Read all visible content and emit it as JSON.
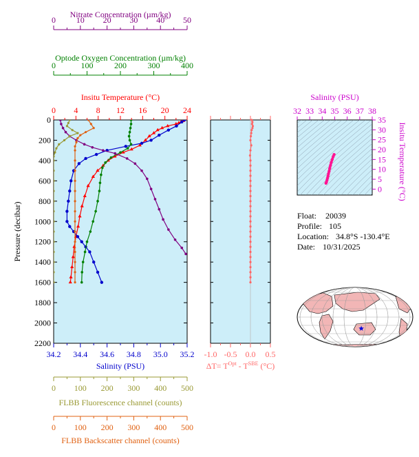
{
  "colors": {
    "nitrate": "#800080",
    "oxygen": "#008000",
    "temperature": "#ff0000",
    "salinity": "#0000cc",
    "fluorescence": "#999933",
    "backscatter": "#e06010",
    "delta_t": "#ff6666",
    "ts_curve": "#ff1493",
    "ts_axis": "#cc00cc",
    "panel_bg": "#cdeef9"
  },
  "info": {
    "float_label": "Float:",
    "float_value": "20039",
    "profile_label": "Profile:",
    "profile_value": "105",
    "location_label": "Location:",
    "location_value": "34.8°S  -130.4°E",
    "date_label": "Date:",
    "date_value": "10/31/2025"
  },
  "chart_data": [
    {
      "type": "line",
      "name": "profile",
      "ylabel": "Pressure (decibar)",
      "ylim": [
        2200,
        0
      ],
      "yticks": [
        "0",
        "200",
        "400",
        "600",
        "800",
        "1000",
        "1200",
        "1400",
        "1600",
        "1800",
        "2000",
        "2200"
      ],
      "axes": {
        "nitrate": {
          "label": "Nitrate Concentration (µm/kg)",
          "range": [
            0,
            50
          ],
          "ticks": [
            "0",
            "10",
            "20",
            "30",
            "40",
            "50"
          ],
          "position": "top"
        },
        "oxygen": {
          "label": "Optode Oxygen Concentration (µm/kg)",
          "range": [
            0,
            400
          ],
          "ticks": [
            "0",
            "100",
            "200",
            "300",
            "400"
          ],
          "position": "top"
        },
        "temperature": {
          "label": "Insitu Temperature (°C)",
          "range": [
            0,
            24
          ],
          "ticks": [
            "0",
            "4",
            "8",
            "12",
            "16",
            "20",
            "24"
          ],
          "position": "top"
        },
        "salinity": {
          "label": "Salinity (PSU)",
          "range": [
            34.2,
            35.2
          ],
          "ticks": [
            "34.2",
            "34.4",
            "34.6",
            "34.8",
            "35.0",
            "35.2"
          ],
          "position": "bottom"
        },
        "fluorescence": {
          "label": "FLBB Fluorescence channel (counts)",
          "range": [
            0,
            500
          ],
          "ticks": [
            "0",
            "100",
            "200",
            "300",
            "400",
            "500"
          ],
          "position": "bottom"
        },
        "backscatter": {
          "label": "FLBB Backscatter channel (counts)",
          "range": [
            0,
            500
          ],
          "ticks": [
            "0",
            "100",
            "200",
            "300",
            "400",
            "500"
          ],
          "position": "bottom"
        }
      },
      "series": [
        {
          "key": "temperature",
          "points": [
            [
              23.5,
              0
            ],
            [
              23.3,
              10
            ],
            [
              22.9,
              20
            ],
            [
              22.5,
              30
            ],
            [
              22.0,
              40
            ],
            [
              20.5,
              60
            ],
            [
              19.5,
              80
            ],
            [
              18.7,
              100
            ],
            [
              18.0,
              130
            ],
            [
              17.2,
              160
            ],
            [
              16.5,
              200
            ],
            [
              15.5,
              250
            ],
            [
              14.0,
              290
            ],
            [
              12.5,
              320
            ],
            [
              11.0,
              360
            ],
            [
              9.8,
              400
            ],
            [
              8.9,
              450
            ],
            [
              7.9,
              500
            ],
            [
              7.1,
              560
            ],
            [
              6.2,
              650
            ],
            [
              5.6,
              750
            ],
            [
              5.1,
              850
            ],
            [
              4.7,
              950
            ],
            [
              4.4,
              1050
            ],
            [
              4.0,
              1150
            ],
            [
              3.7,
              1250
            ],
            [
              3.5,
              1350
            ],
            [
              3.3,
              1450
            ],
            [
              3.1,
              1550
            ],
            [
              3.0,
              1600
            ]
          ]
        },
        {
          "key": "salinity",
          "points": [
            [
              35.18,
              0
            ],
            [
              35.16,
              20
            ],
            [
              35.12,
              60
            ],
            [
              35.06,
              100
            ],
            [
              34.99,
              150
            ],
            [
              34.93,
              200
            ],
            [
              34.86,
              230
            ],
            [
              34.74,
              260
            ],
            [
              34.6,
              300
            ],
            [
              34.52,
              340
            ],
            [
              34.44,
              380
            ],
            [
              34.39,
              430
            ],
            [
              34.35,
              500
            ],
            [
              34.33,
              600
            ],
            [
              34.32,
              700
            ],
            [
              34.31,
              800
            ],
            [
              34.3,
              900
            ],
            [
              34.3,
              1000
            ],
            [
              34.32,
              1050
            ],
            [
              34.35,
              1100
            ],
            [
              34.38,
              1150
            ],
            [
              34.41,
              1200
            ],
            [
              34.44,
              1250
            ],
            [
              34.47,
              1300
            ],
            [
              34.5,
              1400
            ],
            [
              34.53,
              1500
            ],
            [
              34.56,
              1600
            ]
          ]
        },
        {
          "key": "oxygen",
          "points": [
            [
              232,
              0
            ],
            [
              232,
              40
            ],
            [
              230,
              80
            ],
            [
              228,
              120
            ],
            [
              226,
              160
            ],
            [
              228,
              200
            ],
            [
              232,
              240
            ],
            [
              222,
              280
            ],
            [
              200,
              320
            ],
            [
              172,
              370
            ],
            [
              155,
              420
            ],
            [
              146,
              470
            ],
            [
              142,
              540
            ],
            [
              139,
              620
            ],
            [
              137,
              700
            ],
            [
              132,
              800
            ],
            [
              126,
              900
            ],
            [
              118,
              1000
            ],
            [
              110,
              1100
            ],
            [
              100,
              1200
            ],
            [
              94,
              1300
            ],
            [
              88,
              1400
            ],
            [
              85,
              1500
            ],
            [
              84,
              1600
            ]
          ]
        },
        {
          "key": "nitrate",
          "points": [
            [
              2.5,
              0
            ],
            [
              2.8,
              40
            ],
            [
              3.5,
              80
            ],
            [
              4.5,
              120
            ],
            [
              6.0,
              160
            ],
            [
              8.5,
              200
            ],
            [
              11.5,
              240
            ],
            [
              14.5,
              270
            ],
            [
              18.5,
              300
            ],
            [
              23.0,
              330
            ],
            [
              27.5,
              380
            ],
            [
              30.5,
              430
            ],
            [
              33.0,
              500
            ],
            [
              35.0,
              580
            ],
            [
              36.5,
              680
            ],
            [
              38.0,
              780
            ],
            [
              39.5,
              880
            ],
            [
              41.0,
              980
            ],
            [
              43.0,
              1080
            ],
            [
              45.5,
              1180
            ],
            [
              48.0,
              1260
            ],
            [
              49.5,
              1320
            ]
          ]
        },
        {
          "key": "fluorescence",
          "points": [
            [
              60,
              0
            ],
            [
              55,
              30
            ],
            [
              50,
              60
            ],
            [
              70,
              100
            ],
            [
              90,
              130
            ],
            [
              60,
              160
            ],
            [
              40,
              200
            ],
            [
              20,
              240
            ],
            [
              10,
              280
            ],
            [
              5,
              320
            ],
            [
              0,
              360
            ],
            [
              0,
              400
            ],
            [
              0,
              500
            ],
            [
              0,
              600
            ],
            [
              0,
              700
            ],
            [
              0,
              800
            ],
            [
              0,
              900
            ],
            [
              0,
              1000
            ],
            [
              0,
              1100
            ],
            [
              0,
              1200
            ],
            [
              0,
              1300
            ],
            [
              0,
              1400
            ],
            [
              0,
              1500
            ],
            [
              0,
              1600
            ]
          ]
        },
        {
          "key": "backscatter",
          "points": [
            [
              130,
              0
            ],
            [
              140,
              40
            ],
            [
              150,
              80
            ],
            [
              120,
              120
            ],
            [
              100,
              150
            ],
            [
              90,
              180
            ],
            [
              85,
              220
            ],
            [
              80,
              260
            ],
            [
              80,
              300
            ],
            [
              80,
              400
            ],
            [
              80,
              500
            ],
            [
              80,
              600
            ],
            [
              80,
              700
            ],
            [
              80,
              800
            ],
            [
              80,
              900
            ],
            [
              80,
              1000
            ],
            [
              80,
              1100
            ],
            [
              80,
              1200
            ],
            [
              80,
              1300
            ],
            [
              80,
              1400
            ],
            [
              80,
              1500
            ],
            [
              80,
              1600
            ]
          ]
        }
      ]
    },
    {
      "type": "line",
      "name": "delta-t",
      "xlabel_parts": [
        "ΔT= T",
        "Opt",
        " - T",
        "SBE",
        " (°C)"
      ],
      "xlim": [
        -1.0,
        0.5
      ],
      "xticks": [
        "-1.0",
        "-0.5",
        "0.0",
        "0.5"
      ],
      "ylim": [
        2200,
        0
      ],
      "series": [
        {
          "key": "delta_t",
          "points": [
            [
              0.03,
              0
            ],
            [
              0.05,
              20
            ],
            [
              0.04,
              40
            ],
            [
              0.06,
              60
            ],
            [
              0.05,
              80
            ],
            [
              0.03,
              100
            ],
            [
              0.02,
              130
            ],
            [
              0.01,
              160
            ],
            [
              0.0,
              200
            ],
            [
              0.02,
              250
            ],
            [
              0.0,
              300
            ],
            [
              -0.01,
              350
            ],
            [
              0.0,
              400
            ],
            [
              0.0,
              450
            ],
            [
              0.0,
              500
            ],
            [
              0.0,
              550
            ],
            [
              0.0,
              600
            ],
            [
              0.0,
              650
            ],
            [
              0.0,
              700
            ],
            [
              0.0,
              750
            ],
            [
              0.0,
              800
            ],
            [
              0.0,
              850
            ],
            [
              0.0,
              900
            ],
            [
              0.0,
              950
            ],
            [
              0.0,
              1000
            ],
            [
              0.0,
              1050
            ],
            [
              0.0,
              1100
            ],
            [
              0.0,
              1150
            ],
            [
              0.0,
              1200
            ],
            [
              0.0,
              1250
            ],
            [
              0.0,
              1300
            ],
            [
              0.0,
              1350
            ],
            [
              0.0,
              1400
            ],
            [
              0.0,
              1450
            ],
            [
              0.0,
              1500
            ],
            [
              0.0,
              1550
            ],
            [
              0.0,
              1600
            ]
          ]
        }
      ]
    },
    {
      "type": "scatter",
      "name": "ts-diagram",
      "xlabel": "Salinity (PSU)",
      "ylabel": "Insitu Temperature (°C)",
      "xlim": [
        32,
        38
      ],
      "ylim": [
        -3,
        35
      ],
      "xticks": [
        "32",
        "33",
        "34",
        "35",
        "36",
        "37",
        "38"
      ],
      "yticks": [
        "0",
        "5",
        "10",
        "15",
        "20",
        "25",
        "30",
        "35"
      ],
      "points": [
        [
          34.3,
          3.0
        ],
        [
          34.34,
          3.6
        ],
        [
          34.38,
          4.5
        ],
        [
          34.42,
          5.5
        ],
        [
          34.46,
          6.6
        ],
        [
          34.5,
          7.8
        ],
        [
          34.55,
          9.0
        ],
        [
          34.6,
          10.5
        ],
        [
          34.66,
          12.0
        ],
        [
          34.72,
          13.5
        ],
        [
          34.8,
          15.0
        ],
        [
          34.88,
          16.5
        ],
        [
          34.95,
          17.5
        ]
      ]
    },
    {
      "type": "map",
      "name": "location-map",
      "marker": {
        "lat": -34.8,
        "lon": -130.4
      }
    }
  ]
}
